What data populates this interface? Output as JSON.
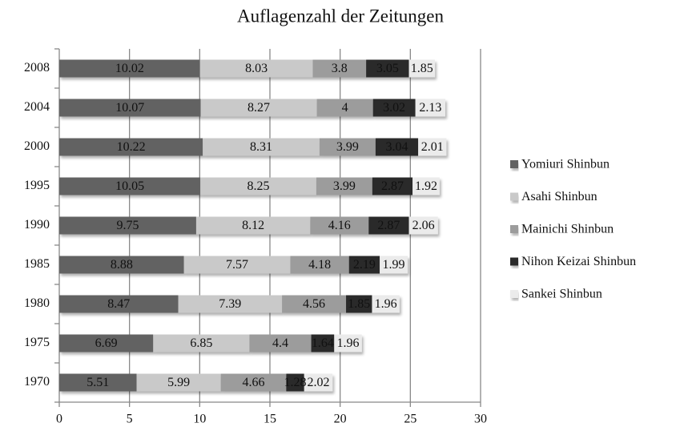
{
  "chart_data": {
    "type": "stacked-bar-horizontal",
    "title": "Auflagenzahl der Zeitungen",
    "categories": [
      "2008",
      "2004",
      "2000",
      "1995",
      "1990",
      "1985",
      "1980",
      "1975",
      "1970"
    ],
    "series": [
      {
        "name": "Yomiuri Shinbun",
        "color": "#626262",
        "values": [
          10.02,
          10.07,
          10.22,
          10.05,
          9.75,
          8.88,
          8.47,
          6.69,
          5.51
        ]
      },
      {
        "name": "Asahi Shinbun",
        "color": "#c9c9c9",
        "values": [
          8.03,
          8.27,
          8.31,
          8.25,
          8.12,
          7.57,
          7.39,
          6.85,
          5.99
        ]
      },
      {
        "name": "Mainichi Shinbun",
        "color": "#9c9c9c",
        "values": [
          3.8,
          4,
          3.99,
          3.99,
          4.16,
          4.18,
          4.56,
          4.4,
          4.66
        ]
      },
      {
        "name": "Nihon Keizai Shinbun",
        "color": "#2c2c2c",
        "values": [
          3.05,
          3.02,
          3.04,
          2.87,
          2.87,
          2.19,
          1.85,
          1.64,
          1.28
        ]
      },
      {
        "name": "Sankei Shinbun",
        "color": "#ebebeb",
        "values": [
          1.85,
          2.13,
          2.01,
          1.92,
          2.06,
          1.99,
          1.96,
          1.96,
          2.02
        ]
      }
    ],
    "xlim": [
      0,
      30
    ],
    "xticks": [
      0,
      5,
      10,
      15,
      20,
      25,
      30
    ],
    "grid": true,
    "legend": "right"
  }
}
